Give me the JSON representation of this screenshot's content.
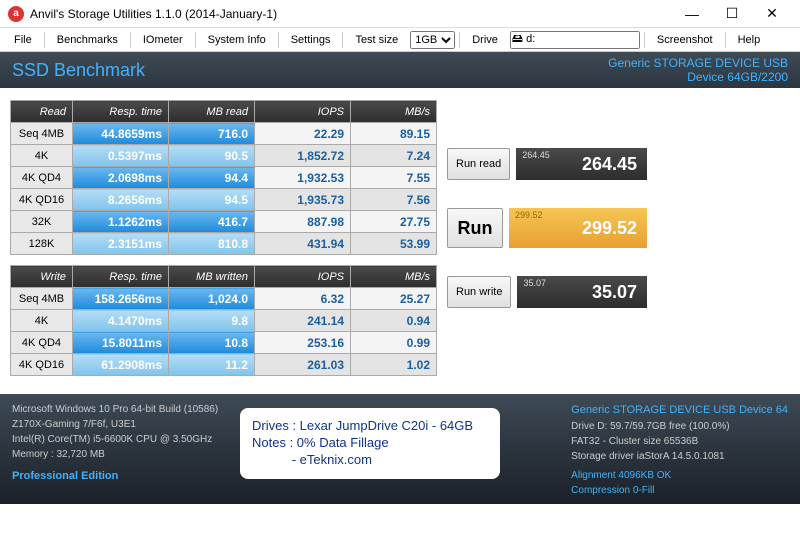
{
  "window": {
    "title": "Anvil's Storage Utilities 1.1.0 (2014-January-1)",
    "icon_letter": "a"
  },
  "menu": {
    "file": "File",
    "benchmarks": "Benchmarks",
    "iometer": "IOmeter",
    "systeminfo": "System Info",
    "settings": "Settings",
    "testsize_label": "Test size",
    "testsize_value": "1GB",
    "drive_label": "Drive",
    "drive_value": "🖴 d:",
    "screenshot": "Screenshot",
    "help": "Help"
  },
  "header": {
    "title": "SSD Benchmark",
    "device_line1": "Generic STORAGE DEVICE USB",
    "device_line2": "Device 64GB/2200"
  },
  "read": {
    "headers": [
      "Read",
      "Resp. time",
      "MB read",
      "IOPS",
      "MB/s"
    ],
    "rows": [
      {
        "label": "Seq 4MB",
        "resp": "44.8659ms",
        "mb": "716.0",
        "iops": "22.29",
        "mbs": "89.15"
      },
      {
        "label": "4K",
        "resp": "0.5397ms",
        "mb": "90.5",
        "iops": "1,852.72",
        "mbs": "7.24"
      },
      {
        "label": "4K QD4",
        "resp": "2.0698ms",
        "mb": "94.4",
        "iops": "1,932.53",
        "mbs": "7.55"
      },
      {
        "label": "4K QD16",
        "resp": "8.2656ms",
        "mb": "94.5",
        "iops": "1,935.73",
        "mbs": "7.56"
      },
      {
        "label": "32K",
        "resp": "1.1262ms",
        "mb": "416.7",
        "iops": "887.98",
        "mbs": "27.75"
      },
      {
        "label": "128K",
        "resp": "2.3151ms",
        "mb": "810.8",
        "iops": "431.94",
        "mbs": "53.99"
      }
    ]
  },
  "write": {
    "headers": [
      "Write",
      "Resp. time",
      "MB written",
      "IOPS",
      "MB/s"
    ],
    "rows": [
      {
        "label": "Seq 4MB",
        "resp": "158.2656ms",
        "mb": "1,024.0",
        "iops": "6.32",
        "mbs": "25.27"
      },
      {
        "label": "4K",
        "resp": "4.1470ms",
        "mb": "9.8",
        "iops": "241.14",
        "mbs": "0.94"
      },
      {
        "label": "4K QD4",
        "resp": "15.8011ms",
        "mb": "10.8",
        "iops": "253.16",
        "mbs": "0.99"
      },
      {
        "label": "4K QD16",
        "resp": "61.2908ms",
        "mb": "11.2",
        "iops": "261.03",
        "mbs": "1.02"
      }
    ]
  },
  "buttons": {
    "runread": "Run read",
    "run": "Run",
    "runwrite": "Run write"
  },
  "scores": {
    "read_small": "264.45",
    "read": "264.45",
    "total_small": "299.52",
    "total": "299.52",
    "write_small": "35.07",
    "write": "35.07"
  },
  "footer": {
    "sys": [
      "Microsoft Windows 10 Pro 64-bit Build (10586)",
      "Z170X-Gaming 7/F6f, U3E1",
      "Intel(R) Core(TM) i5-6600K CPU @ 3.50GHz",
      "Memory : 32,720 MB"
    ],
    "edition": "Professional Edition",
    "notes": [
      "Drives : Lexar JumpDrive C20i - 64GB",
      "Notes : 0% Data Fillage",
      "           - eTeknix.com"
    ],
    "dinfo_title": "Generic STORAGE DEVICE USB Device 64",
    "dinfo": [
      "Drive D: 59.7/59.7GB free (100.0%)",
      "FAT32 - Cluster size 65536B",
      "Storage driver   iaStorA 14.5.0.1081"
    ],
    "alignment": "Alignment 4096KB OK",
    "compression": "Compression 0-Fill"
  }
}
